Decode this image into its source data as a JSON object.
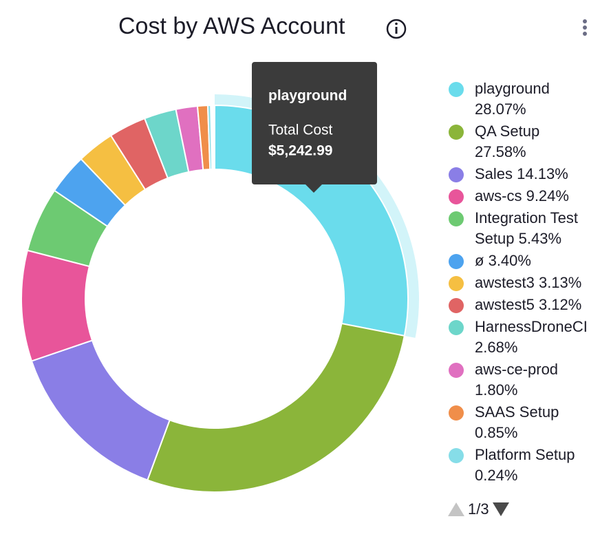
{
  "chart_data": {
    "type": "donut",
    "title": "Cost by AWS Account",
    "categories": [
      "playground",
      "QA Setup",
      "Sales",
      "aws-cs",
      "Integration Test Setup",
      "ø",
      "awstest3",
      "awstest5",
      "HarnessDroneCI",
      "aws-ce-prod",
      "SAAS Setup",
      "Platform Setup"
    ],
    "values": [
      28.07,
      27.58,
      14.13,
      9.24,
      5.43,
      3.4,
      3.13,
      3.12,
      2.68,
      1.8,
      0.85,
      0.24
    ],
    "value_labels": [
      "28.07%",
      "27.58%",
      "14.13%",
      "9.24%",
      "5.43%",
      "3.40%",
      "3.13%",
      "3.12%",
      "2.68%",
      "1.80%",
      "0.85%",
      "0.24%"
    ],
    "colors": [
      "#6adcec",
      "#8bb53a",
      "#8a7ee6",
      "#e8559a",
      "#6dca72",
      "#4da3ef",
      "#f5bf42",
      "#e06464",
      "#6dd6ca",
      "#e070c0",
      "#f08e4a",
      "#86dde8"
    ],
    "tooltip": {
      "title": "playground",
      "label": "Total Cost",
      "value": "$5,242.99"
    },
    "pager": "1/3"
  }
}
